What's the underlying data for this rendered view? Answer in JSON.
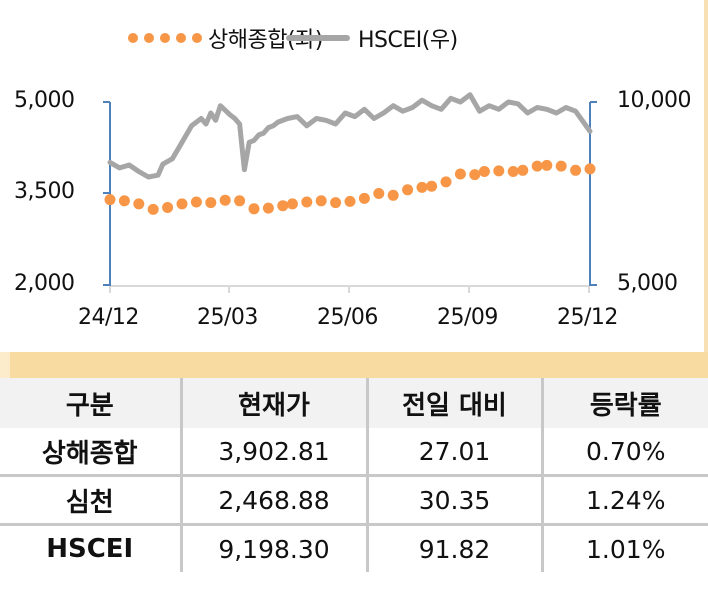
{
  "chart_data": {
    "type": "line",
    "title": "",
    "xlabel": "",
    "ylabel": "",
    "x_ticks": [
      "24/12",
      "25/03",
      "25/06",
      "25/09",
      "25/12"
    ],
    "y_left": {
      "ticks": [
        "5,000",
        "3,500",
        "2,000"
      ],
      "range": [
        2000,
        5000
      ]
    },
    "y_right": {
      "ticks": [
        "10,000",
        "5,000"
      ],
      "range": [
        5000,
        10000
      ]
    },
    "grid": false,
    "legend_position": "top",
    "series": [
      {
        "name": "상해종합(좌)",
        "axis": "left",
        "style": "dotted",
        "color": "#f79646",
        "x_frac": [
          0.0,
          0.03,
          0.06,
          0.09,
          0.12,
          0.15,
          0.18,
          0.21,
          0.24,
          0.27,
          0.3,
          0.33,
          0.36,
          0.38,
          0.41,
          0.44,
          0.47,
          0.5,
          0.53,
          0.56,
          0.59,
          0.62,
          0.65,
          0.67,
          0.7,
          0.73,
          0.76,
          0.78,
          0.81,
          0.84,
          0.86,
          0.89,
          0.91,
          0.94,
          0.97,
          1.0
        ],
        "values": [
          3400,
          3380,
          3330,
          3240,
          3270,
          3330,
          3360,
          3350,
          3390,
          3380,
          3250,
          3260,
          3300,
          3330,
          3360,
          3380,
          3350,
          3370,
          3420,
          3500,
          3470,
          3560,
          3600,
          3620,
          3690,
          3820,
          3810,
          3860,
          3870,
          3860,
          3880,
          3950,
          3960,
          3950,
          3880,
          3902.81
        ]
      },
      {
        "name": "HSCEI(우)",
        "axis": "right",
        "style": "solid",
        "color": "#a6a6a6",
        "x_frac": [
          0.0,
          0.02,
          0.04,
          0.06,
          0.08,
          0.1,
          0.11,
          0.13,
          0.15,
          0.17,
          0.19,
          0.2,
          0.21,
          0.22,
          0.23,
          0.25,
          0.26,
          0.27,
          0.28,
          0.29,
          0.3,
          0.31,
          0.32,
          0.33,
          0.34,
          0.35,
          0.37,
          0.39,
          0.41,
          0.43,
          0.45,
          0.47,
          0.49,
          0.51,
          0.53,
          0.55,
          0.57,
          0.59,
          0.61,
          0.63,
          0.65,
          0.67,
          0.69,
          0.71,
          0.73,
          0.75,
          0.77,
          0.79,
          0.81,
          0.83,
          0.85,
          0.87,
          0.89,
          0.91,
          0.93,
          0.95,
          0.97,
          1.0
        ],
        "values": [
          8350,
          8200,
          8280,
          8100,
          7950,
          8000,
          8300,
          8450,
          8900,
          9350,
          9550,
          9400,
          9700,
          9500,
          9900,
          9650,
          9550,
          9400,
          8150,
          8900,
          8950,
          9100,
          9150,
          9300,
          9350,
          9450,
          9550,
          9600,
          9350,
          9550,
          9500,
          9400,
          9700,
          9600,
          9800,
          9550,
          9700,
          9900,
          9750,
          9850,
          10050,
          9900,
          9800,
          10100,
          10000,
          10200,
          9750,
          9900,
          9800,
          10000,
          9950,
          9700,
          9850,
          9800,
          9700,
          9850,
          9750,
          9198.3
        ]
      }
    ]
  },
  "legend": {
    "shanghai_label": "상해종합(좌)",
    "hscei_label": "HSCEI(우)"
  },
  "axes": {
    "left_ticks": [
      "5,000",
      "3,500",
      "2,000"
    ],
    "right_ticks": [
      "10,000",
      "5,000"
    ],
    "x_ticks": [
      "24/12",
      "25/03",
      "25/06",
      "25/09",
      "25/12"
    ]
  },
  "colors": {
    "shanghai": "#f79646",
    "hscei": "#a6a6a6",
    "axis": "#4f81bd",
    "separator": "#f8dba0",
    "header_bg": "#f2f2f2"
  },
  "table": {
    "headers": [
      "구분",
      "현재가",
      "전일 대비",
      "등락률"
    ],
    "rows": [
      {
        "name": "상해종합",
        "price": "3,902.81",
        "change": "27.01",
        "pct": "0.70%"
      },
      {
        "name": "심천",
        "price": "2,468.88",
        "change": "30.35",
        "pct": "1.24%"
      },
      {
        "name": "HSCEI",
        "price": "9,198.30",
        "change": "91.82",
        "pct": "1.01%"
      }
    ]
  }
}
